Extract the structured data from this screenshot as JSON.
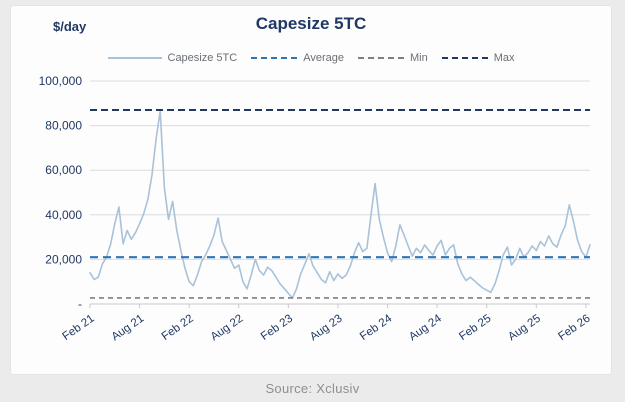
{
  "header": {
    "title": "Capesize 5TC",
    "y_axis_unit": "$/day"
  },
  "legend": [
    {
      "label": "Capesize 5TC",
      "type": "solid",
      "color": "#a9c2da"
    },
    {
      "label": "Average",
      "type": "dashed",
      "color": "#2e75b6"
    },
    {
      "label": "Min",
      "type": "dashed",
      "color": "#7f7f7f"
    },
    {
      "label": "Max",
      "type": "dashed",
      "color": "#1f3864"
    }
  ],
  "footer": {
    "source_note": "Source: Xclusiv"
  },
  "chart_data": {
    "type": "line",
    "title": "Capesize 5TC",
    "ylabel": "$/day",
    "ylim": [
      0,
      100000
    ],
    "grid": true,
    "legend_position": "top",
    "x_tick_labels": [
      "Feb 21",
      "Aug 21",
      "Feb 22",
      "Aug 22",
      "Feb 23",
      "Aug 23",
      "Feb 24",
      "Aug 24",
      "Feb 25",
      "Aug 25",
      "Feb 26"
    ],
    "y_tick_labels": [
      "100,000",
      "80,000",
      "60,000",
      "40,000",
      "20,000",
      "-"
    ],
    "y_tick_values": [
      100000,
      80000,
      60000,
      40000,
      20000,
      0
    ],
    "points_per_tick_interval": 12,
    "series": [
      {
        "name": "Capesize 5TC",
        "values": [
          14000,
          11000,
          12000,
          18000,
          21000,
          27000,
          36000,
          43500,
          27000,
          33000,
          29000,
          32000,
          36000,
          40500,
          47000,
          58000,
          74000,
          86500,
          52000,
          38000,
          46000,
          33000,
          24000,
          16000,
          10000,
          8200,
          13000,
          19000,
          22000,
          26000,
          31000,
          38500,
          28000,
          24000,
          20000,
          16000,
          17500,
          10000,
          6800,
          13000,
          20000,
          15000,
          13000,
          16500,
          15000,
          12000,
          9000,
          7000,
          4800,
          2700,
          7000,
          13500,
          18000,
          22500,
          17000,
          14000,
          11000,
          9500,
          14500,
          10500,
          13500,
          11500,
          13000,
          17000,
          23000,
          27500,
          23500,
          25000,
          40000,
          54000,
          38000,
          30000,
          23000,
          19000,
          26000,
          35500,
          31000,
          26000,
          21500,
          25000,
          23000,
          26500,
          24000,
          22000,
          26000,
          28500,
          22000,
          25000,
          26500,
          18000,
          13500,
          10500,
          12000,
          10500,
          8800,
          7200,
          6200,
          5200,
          9000,
          15000,
          22000,
          25500,
          17500,
          20000,
          25000,
          21000,
          23000,
          26000,
          24000,
          28000,
          26000,
          30500,
          27000,
          25500,
          31000,
          35000,
          44500,
          37000,
          28500,
          23500,
          21000,
          26500
        ]
      }
    ],
    "reference_lines": {
      "average": 21000,
      "min": 2700,
      "max": 87000
    },
    "colors": {
      "series": "#a9c2da",
      "average": "#2e75b6",
      "min": "#7f7f7f",
      "max": "#1f3864",
      "grid": "#dcdcdc",
      "axis_line": "#c9c9c9",
      "axis_text": "#203864"
    }
  }
}
